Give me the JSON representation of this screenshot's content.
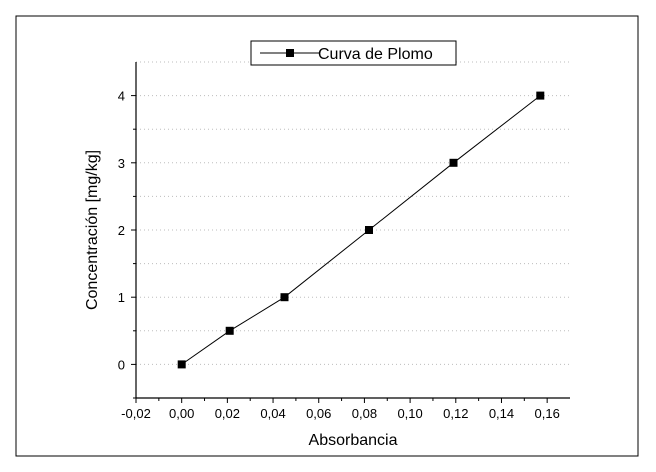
{
  "chart_data": {
    "type": "line",
    "xlabel": "Absorbancia",
    "ylabel": "Concentración [mg/kg]",
    "xlim": [
      -0.02,
      0.17
    ],
    "ylim": [
      -0.5,
      4.5
    ],
    "x_ticks": [
      "-0,02",
      "0,00",
      "0,02",
      "0,04",
      "0,06",
      "0,08",
      "0,10",
      "0,12",
      "0,14",
      "0,16"
    ],
    "x_tick_values": [
      -0.02,
      0.0,
      0.02,
      0.04,
      0.06,
      0.08,
      0.1,
      0.12,
      0.14,
      0.16
    ],
    "y_ticks": [
      "0",
      "1",
      "2",
      "3",
      "4"
    ],
    "y_tick_values": [
      0,
      1,
      2,
      3,
      4
    ],
    "grid": "dotted horizontal",
    "legend": {
      "position": "top-center",
      "entries": [
        "Curva de Plomo"
      ]
    },
    "series": [
      {
        "name": "Curva de Plomo",
        "marker": "square",
        "color": "#000000",
        "x": [
          0.0,
          0.021,
          0.045,
          0.082,
          0.119,
          0.157
        ],
        "y": [
          0.0,
          0.5,
          1.0,
          2.0,
          3.0,
          4.0
        ]
      }
    ]
  }
}
